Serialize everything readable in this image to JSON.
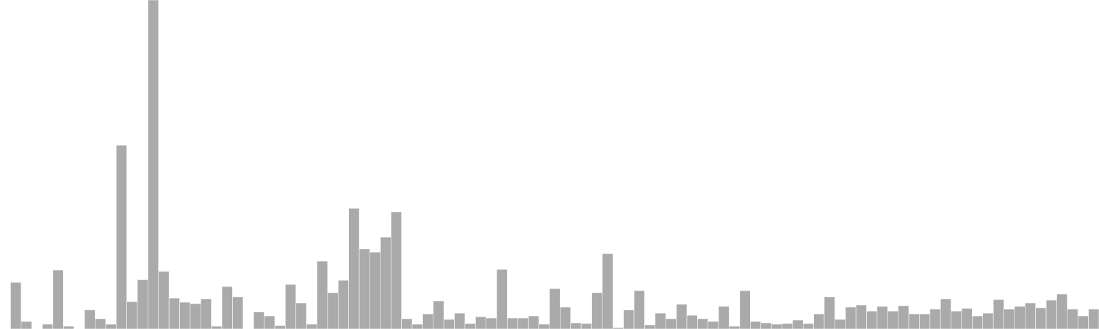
{
  "chart_data": {
    "type": "bar",
    "title": "",
    "xlabel": "",
    "ylabel": "",
    "ylim": [
      0,
      480
    ],
    "grid": false,
    "legend": "none",
    "bar_color": "#aaaaaa",
    "bar_stroke": "#ffffff",
    "values": [
      0,
      68,
      11,
      0,
      7,
      86,
      4,
      0,
      28,
      15,
      7,
      268,
      40,
      72,
      480,
      84,
      45,
      39,
      37,
      44,
      4,
      62,
      47,
      0,
      25,
      19,
      5,
      65,
      38,
      7,
      99,
      53,
      71,
      176,
      117,
      112,
      134,
      171,
      15,
      7,
      22,
      41,
      14,
      23,
      8,
      18,
      16,
      87,
      16,
      16,
      19,
      7,
      59,
      32,
      9,
      8,
      53,
      110,
      2,
      28,
      56,
      6,
      23,
      15,
      36,
      20,
      15,
      11,
      33,
      4,
      56,
      11,
      9,
      7,
      8,
      13,
      8,
      22,
      47,
      14,
      32,
      35,
      26,
      33,
      26,
      34,
      22,
      22,
      29,
      44,
      26,
      30,
      19,
      23,
      43,
      29,
      33,
      38,
      31,
      42,
      51,
      29,
      19,
      29
    ]
  }
}
